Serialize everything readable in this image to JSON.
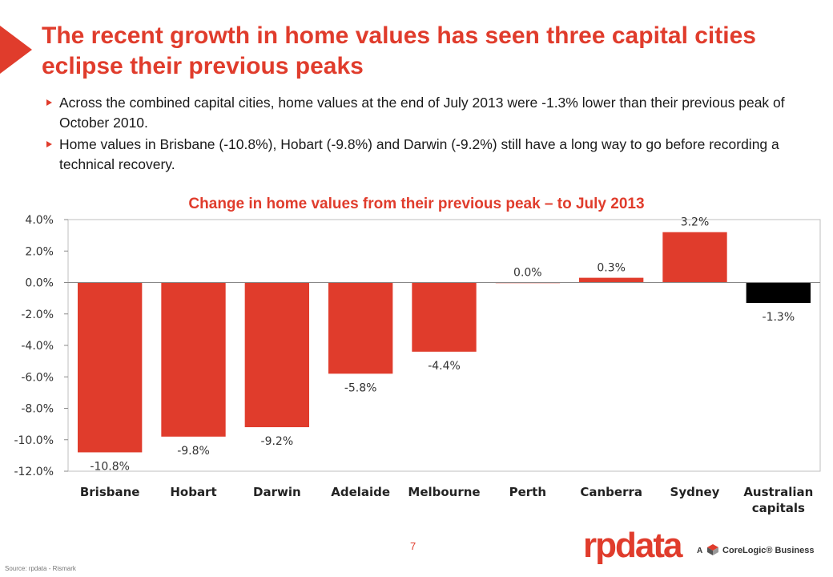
{
  "title": "The recent growth in home values has seen three capital cities eclipse their previous peaks",
  "bullets": [
    "Across the combined capital cities, home values at the end of July 2013 were -1.3% lower than their previous peak of October 2010.",
    "Home values in Brisbane (-10.8%), Hobart (-9.8%) and Darwin (-9.2%) still have a long way to go before recording a technical recovery."
  ],
  "page_number": "7",
  "source": "Source: rpdata - Rismark",
  "logo": {
    "brand": "rpdata",
    "tag_prefix": "A",
    "tag": "CoreLogic® Business"
  },
  "colors": {
    "accent": "#e03c2c",
    "bar": "#e03c2c",
    "bar_highlight": "#000000",
    "text": "#1a1a1a"
  },
  "icons": {
    "accent_shape": "red-triangle-icon",
    "logo_mark": "corelogic-cube-icon"
  },
  "chart_data": {
    "type": "bar",
    "title": "Change in home values from their previous peak – to July 2013",
    "categories": [
      "Brisbane",
      "Hobart",
      "Darwin",
      "Adelaide",
      "Melbourne",
      "Perth",
      "Canberra",
      "Sydney",
      "Australian capitals"
    ],
    "category_lines": [
      [
        "Brisbane"
      ],
      [
        "Hobart"
      ],
      [
        "Darwin"
      ],
      [
        "Adelaide"
      ],
      [
        "Melbourne"
      ],
      [
        "Perth"
      ],
      [
        "Canberra"
      ],
      [
        "Sydney"
      ],
      [
        "Australian",
        "capitals"
      ]
    ],
    "values": [
      -10.8,
      -9.8,
      -9.2,
      -5.8,
      -4.4,
      0.0,
      0.3,
      3.2,
      -1.3
    ],
    "data_labels": [
      "-10.8%",
      "-9.8%",
      "-9.2%",
      "-5.8%",
      "-4.4%",
      "0.0%",
      "0.3%",
      "3.2%",
      "-1.3%"
    ],
    "highlight_index": 8,
    "ylim": [
      -12,
      4
    ],
    "yticks": [
      4,
      2,
      0,
      -2,
      -4,
      -6,
      -8,
      -10,
      -12
    ],
    "ytick_labels": [
      "4.0%",
      "2.0%",
      "0.0%",
      "-2.0%",
      "-4.0%",
      "-6.0%",
      "-8.0%",
      "-10.0%",
      "-12.0%"
    ],
    "xlabel": "",
    "ylabel": "",
    "grid": false,
    "legend": "none"
  }
}
